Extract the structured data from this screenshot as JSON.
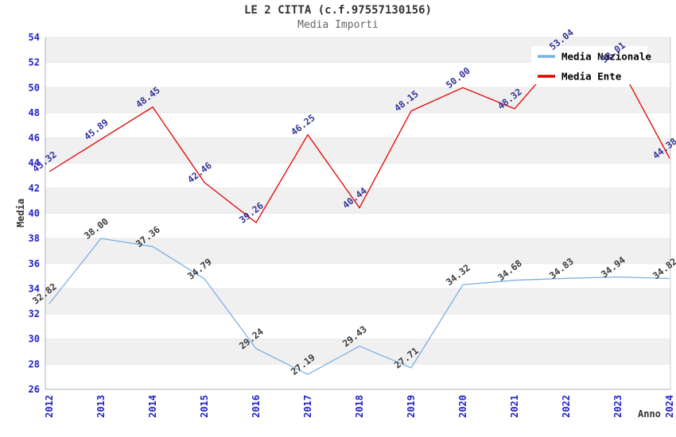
{
  "chart_data": {
    "type": "line",
    "title": "LE 2 CITTA (c.f.97557130156)",
    "subtitle": "Media Importi",
    "xlabel": "Anno",
    "ylabel": "Media",
    "x": [
      2012,
      2013,
      2014,
      2015,
      2016,
      2017,
      2018,
      2019,
      2020,
      2021,
      2022,
      2023,
      2024
    ],
    "series": [
      {
        "name": "Media Nazionale",
        "color": "#7cb1e3",
        "label_color": "#3a3a3a",
        "values": [
          32.82,
          38.0,
          37.36,
          34.79,
          29.24,
          27.19,
          29.43,
          27.71,
          34.32,
          34.68,
          34.83,
          34.94,
          34.82
        ]
      },
      {
        "name": "Media Ente",
        "color": "#e60000",
        "label_color": "#333399",
        "values": [
          43.32,
          45.89,
          48.45,
          42.46,
          39.26,
          46.25,
          40.44,
          48.15,
          50.0,
          48.32,
          53.04,
          52.01,
          44.38
        ]
      }
    ],
    "ylim": [
      26,
      54
    ],
    "ytick_step": 2,
    "yticks": [
      26,
      28,
      30,
      32,
      34,
      36,
      38,
      40,
      42,
      44,
      46,
      48,
      50,
      52,
      54
    ],
    "grid": "alternating horizontal gray bands with light gridlines",
    "legend_position": "top-right",
    "data_labels": "shown, rotated, 2 decimals",
    "colors": {
      "band": "#f0f0f0",
      "gridline": "#e8e8e8",
      "axis_border": "#b0b0b0",
      "right_border": "#cccccc",
      "tick_label": "#1f1fcc",
      "legend_text": "#000000",
      "legend_bg": "#ffffff",
      "title": "#333333",
      "subtitle": "#666666"
    }
  }
}
